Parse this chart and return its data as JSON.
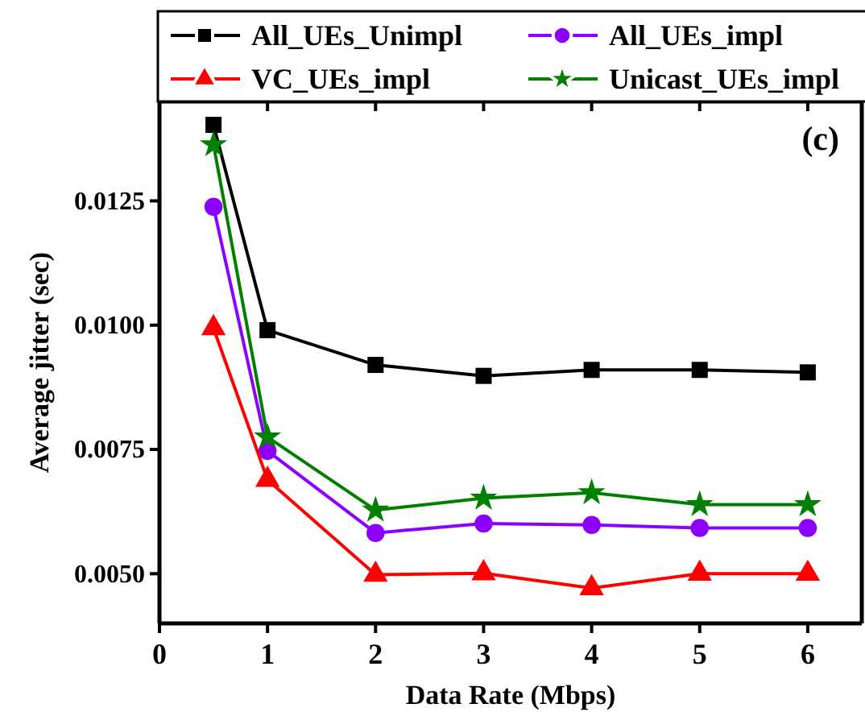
{
  "chart_data": {
    "type": "line",
    "xlabel": "Data Rate (Mbps)",
    "ylabel": "Average jitter (sec)",
    "annotations": [
      "(c)"
    ],
    "x": [
      0.5,
      1,
      2,
      3,
      4,
      5,
      6
    ],
    "series": [
      {
        "name": "All_UEs_Unimpl",
        "color": "#000000",
        "marker": "square",
        "values": [
          0.01403,
          0.0099,
          0.0092,
          0.00898,
          0.0091,
          0.0091,
          0.00905
        ]
      },
      {
        "name": "All_UEs_impl",
        "color": "#8b00ff",
        "marker": "circle",
        "values": [
          0.01238,
          0.00747,
          0.00582,
          0.00601,
          0.00598,
          0.00592,
          0.00592
        ]
      },
      {
        "name": "VC_UEs_impl",
        "color": "#ff0000",
        "marker": "triangle",
        "values": [
          0.00994,
          0.00689,
          0.00498,
          0.00501,
          0.00471,
          0.005,
          0.005
        ]
      },
      {
        "name": "Unicast_UEs_impl",
        "color": "#008000",
        "marker": "star",
        "values": [
          0.01363,
          0.00775,
          0.00628,
          0.00652,
          0.00663,
          0.00639,
          0.00639
        ]
      }
    ],
    "xlim": [
      0,
      6.5
    ],
    "xticks": [
      0,
      1,
      2,
      3,
      4,
      5,
      6
    ],
    "ylim": [
      0.004,
      0.0145
    ],
    "yticks": [
      {
        "value": 0.005,
        "label": "0.0050"
      },
      {
        "value": 0.0075,
        "label": "0.0075"
      },
      {
        "value": 0.01,
        "label": "0.0100"
      },
      {
        "value": 0.0125,
        "label": "0.0125"
      }
    ],
    "grid": false,
    "legend": "top",
    "line_style": "solid"
  }
}
